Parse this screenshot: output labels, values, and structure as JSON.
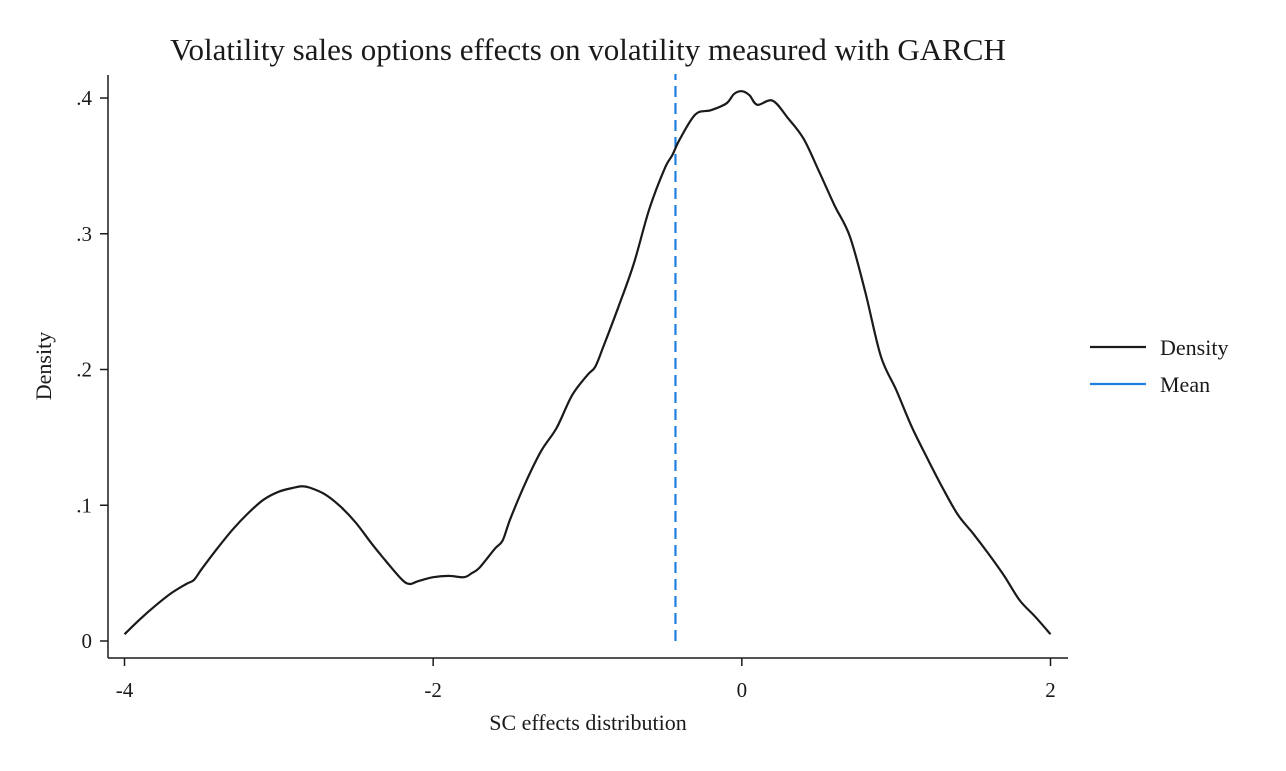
{
  "chart_data": {
    "type": "line",
    "title": "Volatility sales options effects on volatility measured with GARCH",
    "xlabel": "SC effects distribution",
    "ylabel": "Density",
    "xlim": [
      -4,
      2
    ],
    "ylim": [
      0,
      0.42
    ],
    "x_ticks": [
      -4,
      -2,
      0,
      2
    ],
    "x_tick_labels": [
      "-4",
      "-2",
      "0",
      "2"
    ],
    "y_ticks": [
      0,
      0.1,
      0.2,
      0.3,
      0.4
    ],
    "y_tick_labels": [
      "0",
      ".1",
      ".2",
      ".3",
      ".4"
    ],
    "grid": false,
    "legend_position": "right",
    "series": [
      {
        "name": "Density",
        "color": "#1a1a1a",
        "style": "solid",
        "x": [
          -4.0,
          -3.9,
          -3.8,
          -3.7,
          -3.6,
          -3.55,
          -3.5,
          -3.4,
          -3.3,
          -3.2,
          -3.1,
          -3.0,
          -2.9,
          -2.85,
          -2.8,
          -2.7,
          -2.6,
          -2.5,
          -2.4,
          -2.3,
          -2.2,
          -2.15,
          -2.1,
          -2.0,
          -1.9,
          -1.8,
          -1.75,
          -1.7,
          -1.6,
          -1.55,
          -1.5,
          -1.4,
          -1.3,
          -1.2,
          -1.1,
          -1.0,
          -0.95,
          -0.9,
          -0.8,
          -0.7,
          -0.6,
          -0.5,
          -0.45,
          -0.4,
          -0.3,
          -0.2,
          -0.1,
          -0.05,
          0.0,
          0.05,
          0.1,
          0.2,
          0.3,
          0.4,
          0.5,
          0.6,
          0.7,
          0.8,
          0.9,
          1.0,
          1.1,
          1.2,
          1.3,
          1.4,
          1.5,
          1.6,
          1.7,
          1.8,
          1.9,
          2.0
        ],
        "values": [
          0.005,
          0.016,
          0.026,
          0.035,
          0.042,
          0.045,
          0.053,
          0.068,
          0.082,
          0.094,
          0.104,
          0.11,
          0.113,
          0.114,
          0.113,
          0.108,
          0.099,
          0.087,
          0.072,
          0.058,
          0.045,
          0.042,
          0.044,
          0.047,
          0.048,
          0.047,
          0.05,
          0.054,
          0.068,
          0.074,
          0.09,
          0.117,
          0.14,
          0.157,
          0.181,
          0.196,
          0.202,
          0.216,
          0.246,
          0.278,
          0.318,
          0.348,
          0.358,
          0.37,
          0.388,
          0.391,
          0.396,
          0.403,
          0.405,
          0.402,
          0.395,
          0.398,
          0.385,
          0.37,
          0.346,
          0.321,
          0.298,
          0.257,
          0.21,
          0.185,
          0.158,
          0.135,
          0.113,
          0.093,
          0.079,
          0.064,
          0.048,
          0.03,
          0.018,
          0.005
        ]
      },
      {
        "name": "Mean",
        "color": "#1f7fe0",
        "style": "dashed",
        "x": [
          -0.43,
          -0.43
        ],
        "values": [
          0,
          0.42
        ]
      }
    ]
  }
}
